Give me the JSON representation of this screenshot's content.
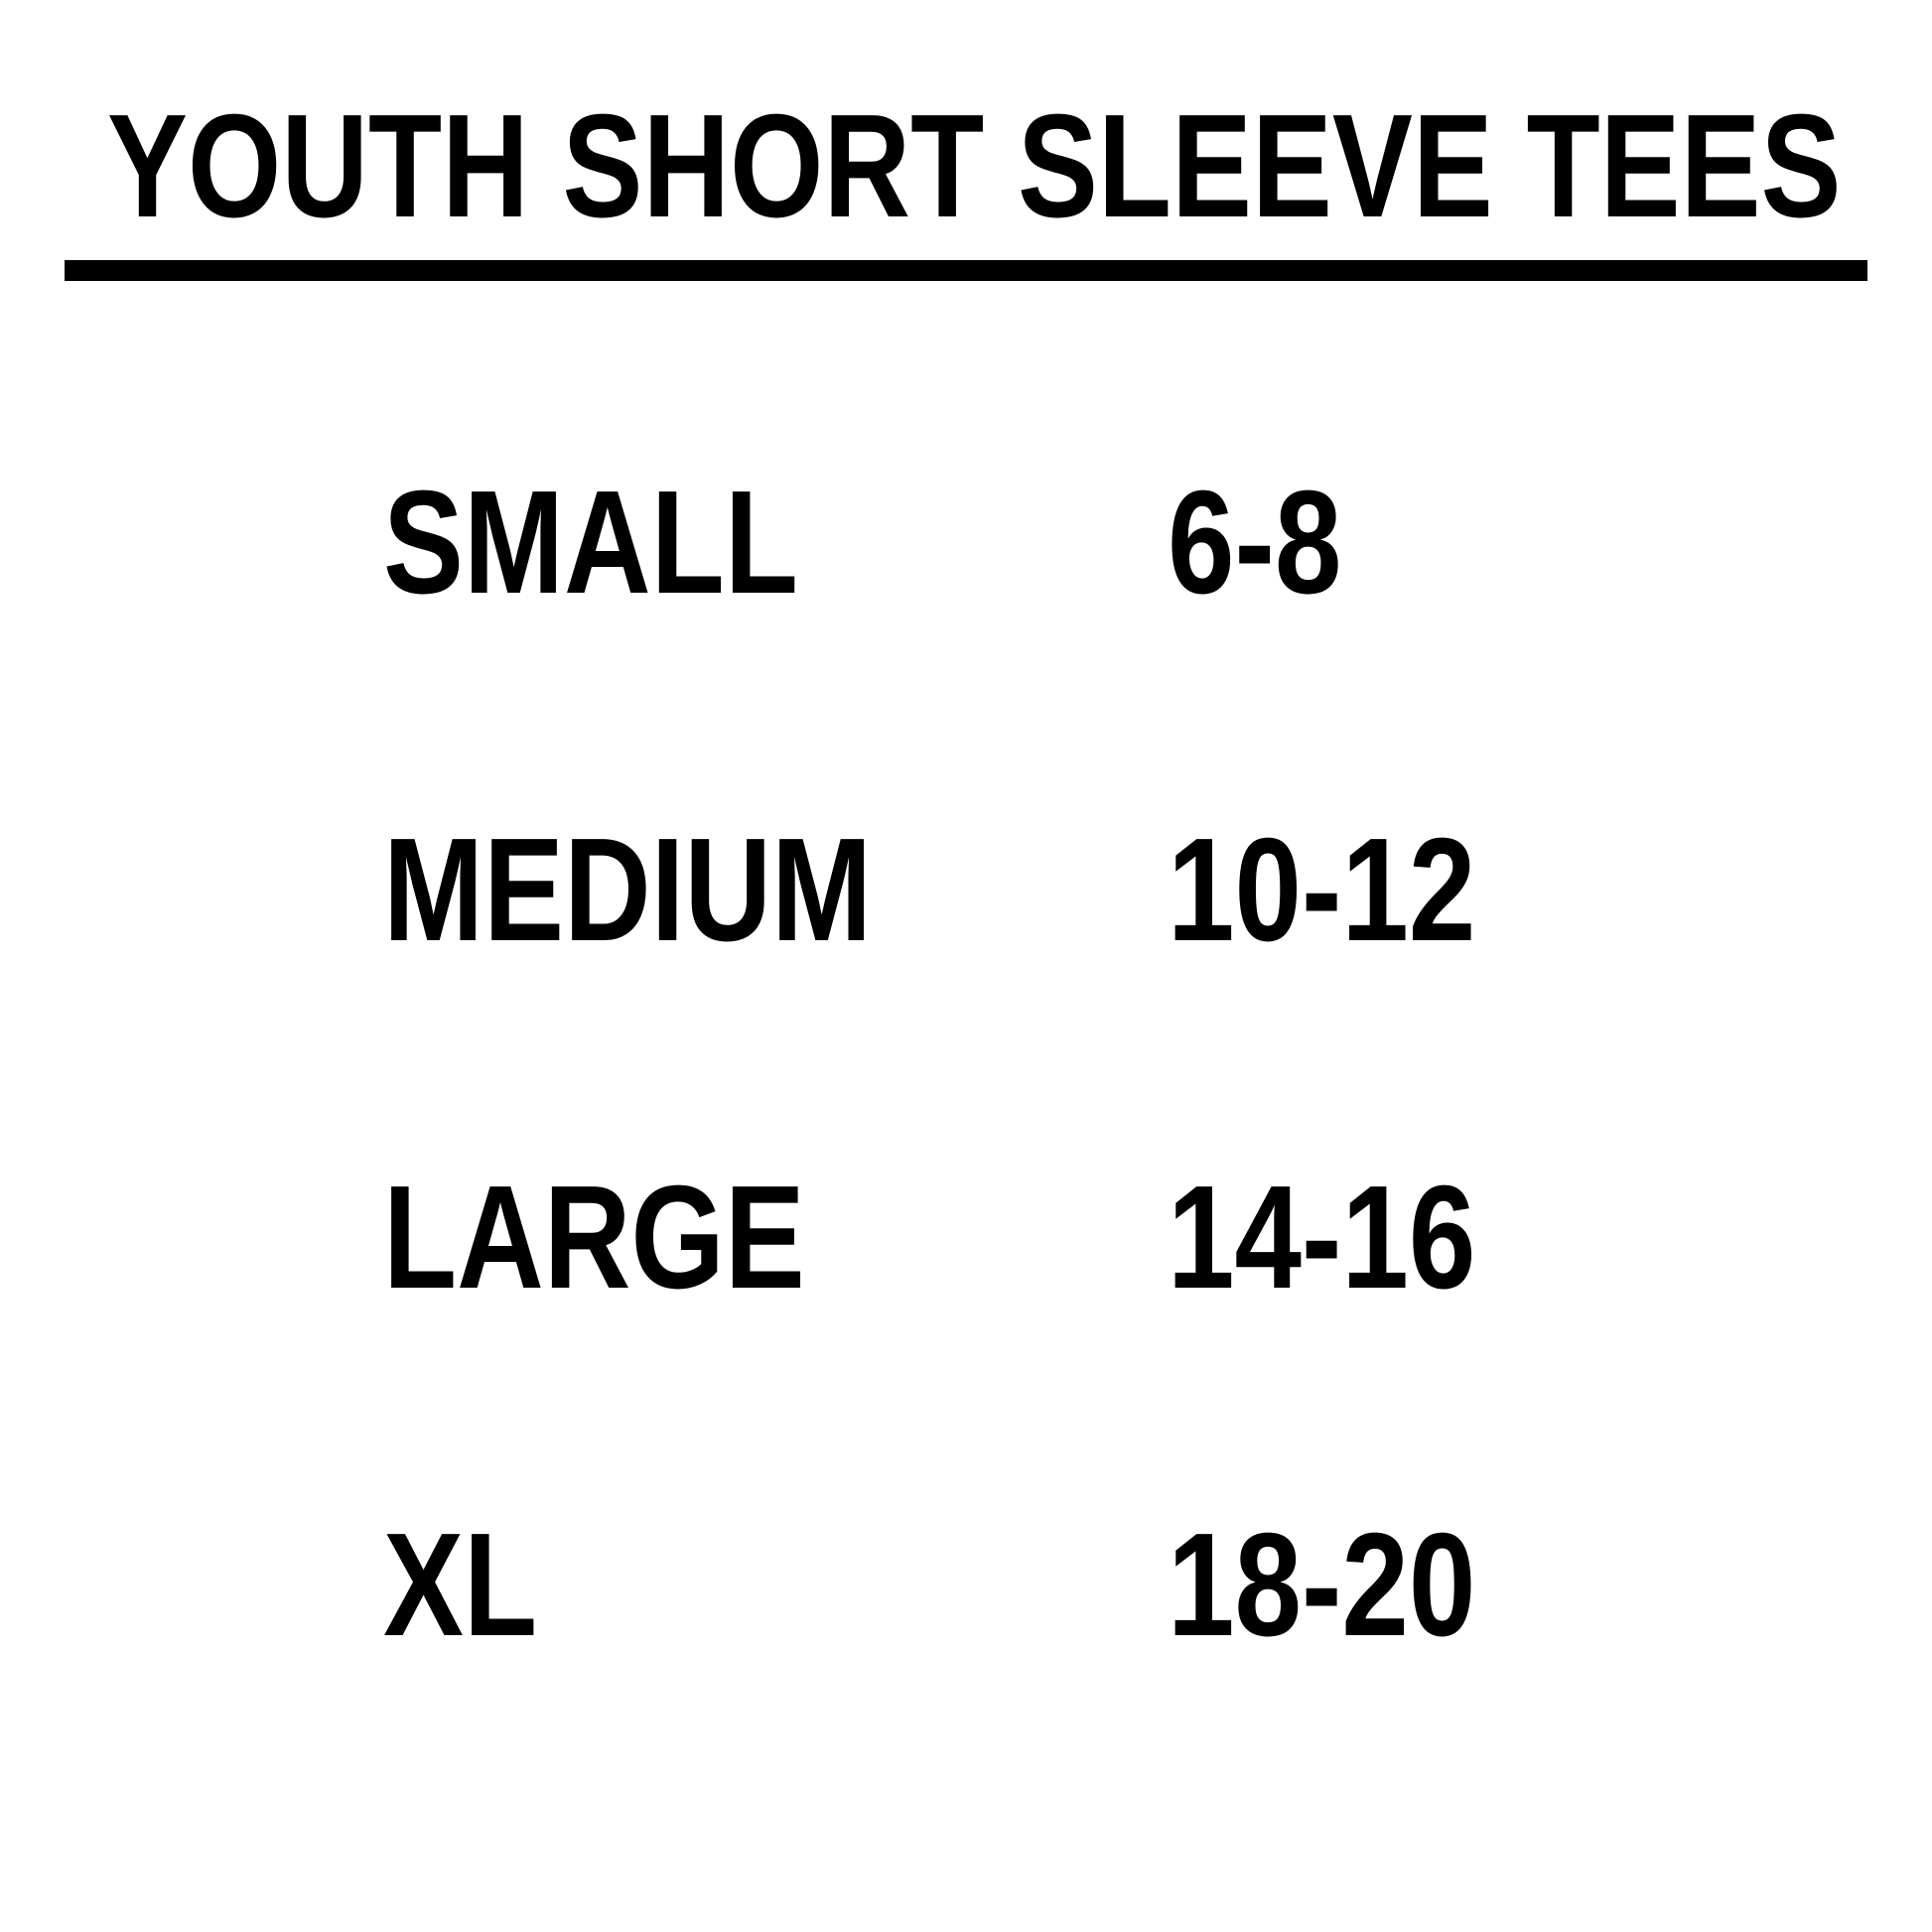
{
  "title": "YOUTH SHORT SLEEVE TEES",
  "colors": {
    "text": "#000000",
    "background": "#ffffff"
  },
  "sizes": [
    {
      "size": "SMALL",
      "ages": "6-8"
    },
    {
      "size": "MEDIUM",
      "ages": "10-12"
    },
    {
      "size": "LARGE",
      "ages": "14-16"
    },
    {
      "size": "XL",
      "ages": "18-20"
    }
  ]
}
